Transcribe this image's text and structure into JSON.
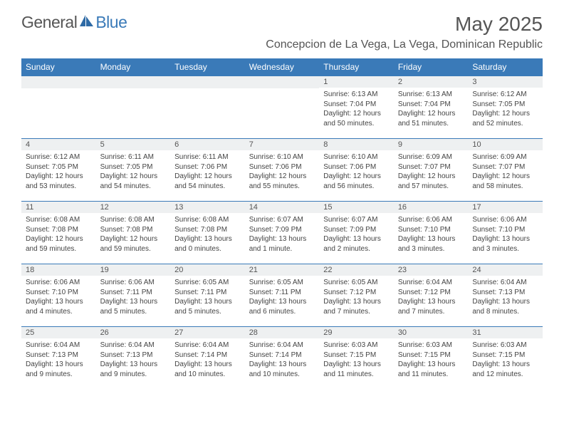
{
  "logo": {
    "text_gray": "General",
    "text_blue": "Blue"
  },
  "title": "May 2025",
  "location": "Concepcion de La Vega, La Vega, Dominican Republic",
  "colors": {
    "header_bg": "#3a7ab8",
    "header_text": "#ffffff",
    "daynum_bg": "#eef0f1",
    "rule": "#3a7ab8",
    "text": "#444444",
    "title_text": "#555555"
  },
  "day_headers": [
    "Sunday",
    "Monday",
    "Tuesday",
    "Wednesday",
    "Thursday",
    "Friday",
    "Saturday"
  ],
  "weeks": [
    [
      {
        "n": "",
        "sr": "",
        "ss": "",
        "d1": "",
        "d2": ""
      },
      {
        "n": "",
        "sr": "",
        "ss": "",
        "d1": "",
        "d2": ""
      },
      {
        "n": "",
        "sr": "",
        "ss": "",
        "d1": "",
        "d2": ""
      },
      {
        "n": "",
        "sr": "",
        "ss": "",
        "d1": "",
        "d2": ""
      },
      {
        "n": "1",
        "sr": "Sunrise: 6:13 AM",
        "ss": "Sunset: 7:04 PM",
        "d1": "Daylight: 12 hours",
        "d2": "and 50 minutes."
      },
      {
        "n": "2",
        "sr": "Sunrise: 6:13 AM",
        "ss": "Sunset: 7:04 PM",
        "d1": "Daylight: 12 hours",
        "d2": "and 51 minutes."
      },
      {
        "n": "3",
        "sr": "Sunrise: 6:12 AM",
        "ss": "Sunset: 7:05 PM",
        "d1": "Daylight: 12 hours",
        "d2": "and 52 minutes."
      }
    ],
    [
      {
        "n": "4",
        "sr": "Sunrise: 6:12 AM",
        "ss": "Sunset: 7:05 PM",
        "d1": "Daylight: 12 hours",
        "d2": "and 53 minutes."
      },
      {
        "n": "5",
        "sr": "Sunrise: 6:11 AM",
        "ss": "Sunset: 7:05 PM",
        "d1": "Daylight: 12 hours",
        "d2": "and 54 minutes."
      },
      {
        "n": "6",
        "sr": "Sunrise: 6:11 AM",
        "ss": "Sunset: 7:06 PM",
        "d1": "Daylight: 12 hours",
        "d2": "and 54 minutes."
      },
      {
        "n": "7",
        "sr": "Sunrise: 6:10 AM",
        "ss": "Sunset: 7:06 PM",
        "d1": "Daylight: 12 hours",
        "d2": "and 55 minutes."
      },
      {
        "n": "8",
        "sr": "Sunrise: 6:10 AM",
        "ss": "Sunset: 7:06 PM",
        "d1": "Daylight: 12 hours",
        "d2": "and 56 minutes."
      },
      {
        "n": "9",
        "sr": "Sunrise: 6:09 AM",
        "ss": "Sunset: 7:07 PM",
        "d1": "Daylight: 12 hours",
        "d2": "and 57 minutes."
      },
      {
        "n": "10",
        "sr": "Sunrise: 6:09 AM",
        "ss": "Sunset: 7:07 PM",
        "d1": "Daylight: 12 hours",
        "d2": "and 58 minutes."
      }
    ],
    [
      {
        "n": "11",
        "sr": "Sunrise: 6:08 AM",
        "ss": "Sunset: 7:08 PM",
        "d1": "Daylight: 12 hours",
        "d2": "and 59 minutes."
      },
      {
        "n": "12",
        "sr": "Sunrise: 6:08 AM",
        "ss": "Sunset: 7:08 PM",
        "d1": "Daylight: 12 hours",
        "d2": "and 59 minutes."
      },
      {
        "n": "13",
        "sr": "Sunrise: 6:08 AM",
        "ss": "Sunset: 7:08 PM",
        "d1": "Daylight: 13 hours",
        "d2": "and 0 minutes."
      },
      {
        "n": "14",
        "sr": "Sunrise: 6:07 AM",
        "ss": "Sunset: 7:09 PM",
        "d1": "Daylight: 13 hours",
        "d2": "and 1 minute."
      },
      {
        "n": "15",
        "sr": "Sunrise: 6:07 AM",
        "ss": "Sunset: 7:09 PM",
        "d1": "Daylight: 13 hours",
        "d2": "and 2 minutes."
      },
      {
        "n": "16",
        "sr": "Sunrise: 6:06 AM",
        "ss": "Sunset: 7:10 PM",
        "d1": "Daylight: 13 hours",
        "d2": "and 3 minutes."
      },
      {
        "n": "17",
        "sr": "Sunrise: 6:06 AM",
        "ss": "Sunset: 7:10 PM",
        "d1": "Daylight: 13 hours",
        "d2": "and 3 minutes."
      }
    ],
    [
      {
        "n": "18",
        "sr": "Sunrise: 6:06 AM",
        "ss": "Sunset: 7:10 PM",
        "d1": "Daylight: 13 hours",
        "d2": "and 4 minutes."
      },
      {
        "n": "19",
        "sr": "Sunrise: 6:06 AM",
        "ss": "Sunset: 7:11 PM",
        "d1": "Daylight: 13 hours",
        "d2": "and 5 minutes."
      },
      {
        "n": "20",
        "sr": "Sunrise: 6:05 AM",
        "ss": "Sunset: 7:11 PM",
        "d1": "Daylight: 13 hours",
        "d2": "and 5 minutes."
      },
      {
        "n": "21",
        "sr": "Sunrise: 6:05 AM",
        "ss": "Sunset: 7:11 PM",
        "d1": "Daylight: 13 hours",
        "d2": "and 6 minutes."
      },
      {
        "n": "22",
        "sr": "Sunrise: 6:05 AM",
        "ss": "Sunset: 7:12 PM",
        "d1": "Daylight: 13 hours",
        "d2": "and 7 minutes."
      },
      {
        "n": "23",
        "sr": "Sunrise: 6:04 AM",
        "ss": "Sunset: 7:12 PM",
        "d1": "Daylight: 13 hours",
        "d2": "and 7 minutes."
      },
      {
        "n": "24",
        "sr": "Sunrise: 6:04 AM",
        "ss": "Sunset: 7:13 PM",
        "d1": "Daylight: 13 hours",
        "d2": "and 8 minutes."
      }
    ],
    [
      {
        "n": "25",
        "sr": "Sunrise: 6:04 AM",
        "ss": "Sunset: 7:13 PM",
        "d1": "Daylight: 13 hours",
        "d2": "and 9 minutes."
      },
      {
        "n": "26",
        "sr": "Sunrise: 6:04 AM",
        "ss": "Sunset: 7:13 PM",
        "d1": "Daylight: 13 hours",
        "d2": "and 9 minutes."
      },
      {
        "n": "27",
        "sr": "Sunrise: 6:04 AM",
        "ss": "Sunset: 7:14 PM",
        "d1": "Daylight: 13 hours",
        "d2": "and 10 minutes."
      },
      {
        "n": "28",
        "sr": "Sunrise: 6:04 AM",
        "ss": "Sunset: 7:14 PM",
        "d1": "Daylight: 13 hours",
        "d2": "and 10 minutes."
      },
      {
        "n": "29",
        "sr": "Sunrise: 6:03 AM",
        "ss": "Sunset: 7:15 PM",
        "d1": "Daylight: 13 hours",
        "d2": "and 11 minutes."
      },
      {
        "n": "30",
        "sr": "Sunrise: 6:03 AM",
        "ss": "Sunset: 7:15 PM",
        "d1": "Daylight: 13 hours",
        "d2": "and 11 minutes."
      },
      {
        "n": "31",
        "sr": "Sunrise: 6:03 AM",
        "ss": "Sunset: 7:15 PM",
        "d1": "Daylight: 13 hours",
        "d2": "and 12 minutes."
      }
    ]
  ]
}
